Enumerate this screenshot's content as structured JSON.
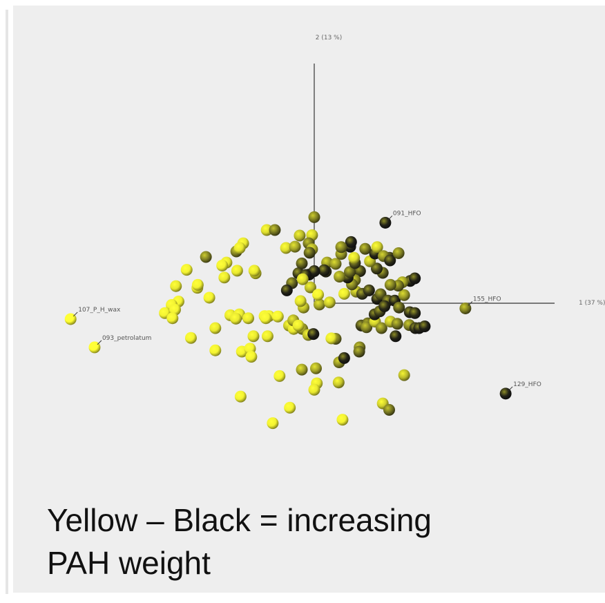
{
  "chart_data": {
    "type": "scatter",
    "axis_labels": {
      "x": "1 (37 %)",
      "y": "2 (13 %)"
    },
    "color_scale": {
      "low": "#ffff33",
      "high": "#151515"
    },
    "labeled_points": [
      {
        "label": "091_HFO",
        "x": 1.66,
        "y": 1.88,
        "w": 0.95
      },
      {
        "label": "155_HFO",
        "x": 3.53,
        "y": -0.12,
        "w": 0.55
      },
      {
        "label": "107_P_H_wax",
        "x": -5.69,
        "y": -0.37,
        "w": 0.0
      },
      {
        "label": "093_petrolatum",
        "x": -5.13,
        "y": -1.03,
        "w": 0.0
      },
      {
        "label": "129_HFO",
        "x": 4.47,
        "y": -2.11,
        "w": 0.95
      }
    ],
    "points": [
      {
        "x": 0.0,
        "y": 2.01,
        "w": 0.55
      },
      {
        "x": -1.11,
        "y": 1.71,
        "w": 0.15
      },
      {
        "x": -0.92,
        "y": 1.71,
        "w": 0.6
      },
      {
        "x": -0.34,
        "y": 1.58,
        "w": 0.3
      },
      {
        "x": -0.05,
        "y": 1.59,
        "w": 0.2
      },
      {
        "x": -1.66,
        "y": 1.4,
        "w": 0.1
      },
      {
        "x": -1.82,
        "y": 1.21,
        "w": 0.55
      },
      {
        "x": -0.66,
        "y": 1.29,
        "w": 0.15
      },
      {
        "x": -0.45,
        "y": 1.32,
        "w": 0.4
      },
      {
        "x": -0.13,
        "y": 1.4,
        "w": 0.6
      },
      {
        "x": -0.05,
        "y": 1.26,
        "w": 0.35
      },
      {
        "x": -0.11,
        "y": 1.18,
        "w": 0.7
      },
      {
        "x": 0.3,
        "y": 0.95,
        "w": 0.45
      },
      {
        "x": -0.29,
        "y": 0.93,
        "w": 0.7
      },
      {
        "x": -1.74,
        "y": 1.29,
        "w": 0.1
      },
      {
        "x": -2.53,
        "y": 1.08,
        "w": 0.55
      },
      {
        "x": -2.05,
        "y": 0.95,
        "w": 0.1
      },
      {
        "x": -1.8,
        "y": 0.76,
        "w": 0.1
      },
      {
        "x": -1.37,
        "y": 0.7,
        "w": 0.2
      },
      {
        "x": -1.4,
        "y": 0.76,
        "w": 0.1
      },
      {
        "x": -2.98,
        "y": 0.78,
        "w": 0.05
      },
      {
        "x": -2.1,
        "y": 0.6,
        "w": 0.1
      },
      {
        "x": -2.15,
        "y": 0.88,
        "w": 0.05
      },
      {
        "x": -3.23,
        "y": 0.4,
        "w": 0.1
      },
      {
        "x": -2.73,
        "y": 0.36,
        "w": 0.1
      },
      {
        "x": -2.72,
        "y": 0.43,
        "w": 0.05
      },
      {
        "x": -3.17,
        "y": 0.04,
        "w": 0.05
      },
      {
        "x": -3.33,
        "y": -0.04,
        "w": 0.05
      },
      {
        "x": -3.49,
        "y": -0.23,
        "w": 0.05
      },
      {
        "x": -3.25,
        "y": -0.15,
        "w": 0.05
      },
      {
        "x": -3.31,
        "y": -0.35,
        "w": 0.05
      },
      {
        "x": -2.45,
        "y": 0.13,
        "w": 0.05
      },
      {
        "x": -1.96,
        "y": -0.28,
        "w": 0.1
      },
      {
        "x": -1.75,
        "y": -0.26,
        "w": 0.1
      },
      {
        "x": -1.54,
        "y": -0.35,
        "w": 0.1
      },
      {
        "x": -1.83,
        "y": -0.36,
        "w": 0.1
      },
      {
        "x": -1.16,
        "y": -0.3,
        "w": 0.05
      },
      {
        "x": -1.06,
        "y": -0.3,
        "w": 0.05
      },
      {
        "x": -1.13,
        "y": -0.35,
        "w": 0.05
      },
      {
        "x": -0.85,
        "y": -0.31,
        "w": 0.05
      },
      {
        "x": -0.59,
        "y": -0.52,
        "w": 0.25
      },
      {
        "x": -0.48,
        "y": -0.6,
        "w": 0.1
      },
      {
        "x": -0.28,
        "y": -0.6,
        "w": 0.45
      },
      {
        "x": -0.49,
        "y": -0.4,
        "w": 0.35
      },
      {
        "x": -0.37,
        "y": -0.52,
        "w": 0.1
      },
      {
        "x": -0.25,
        "y": -0.1,
        "w": 0.3
      },
      {
        "x": -0.32,
        "y": 0.05,
        "w": 0.15
      },
      {
        "x": -0.14,
        "y": -0.74,
        "w": 0.3
      },
      {
        "x": -0.02,
        "y": -0.72,
        "w": 0.95
      },
      {
        "x": -1.42,
        "y": -0.77,
        "w": 0.1
      },
      {
        "x": -1.09,
        "y": -0.77,
        "w": 0.1
      },
      {
        "x": -2.31,
        "y": -0.58,
        "w": 0.1
      },
      {
        "x": -2.88,
        "y": -0.81,
        "w": 0.05
      },
      {
        "x": -2.31,
        "y": -1.1,
        "w": 0.05
      },
      {
        "x": -1.69,
        "y": -1.13,
        "w": 0.05
      },
      {
        "x": -1.5,
        "y": -1.06,
        "w": 0.05
      },
      {
        "x": -1.47,
        "y": -1.25,
        "w": 0.05
      },
      {
        "x": -0.81,
        "y": -1.7,
        "w": 0.05
      },
      {
        "x": -0.29,
        "y": -1.55,
        "w": 0.4
      },
      {
        "x": 0.04,
        "y": -1.52,
        "w": 0.4
      },
      {
        "x": 0.58,
        "y": -1.38,
        "w": 0.5
      },
      {
        "x": 0.7,
        "y": -1.28,
        "w": 0.95
      },
      {
        "x": 0.06,
        "y": -1.87,
        "w": 0.1
      },
      {
        "x": 0.57,
        "y": -1.85,
        "w": 0.25
      },
      {
        "x": 0.0,
        "y": -2.02,
        "w": 0.1
      },
      {
        "x": -1.72,
        "y": -2.18,
        "w": 0.05
      },
      {
        "x": -0.57,
        "y": -2.44,
        "w": 0.05
      },
      {
        "x": -0.97,
        "y": -2.8,
        "w": 0.05
      },
      {
        "x": 0.66,
        "y": -2.72,
        "w": 0.05
      },
      {
        "x": 1.6,
        "y": -2.34,
        "w": 0.2
      },
      {
        "x": 1.75,
        "y": -2.49,
        "w": 0.6
      },
      {
        "x": 2.1,
        "y": -1.68,
        "w": 0.3
      },
      {
        "x": 0.5,
        "y": -0.83,
        "w": 0.55
      },
      {
        "x": 1.06,
        "y": -1.03,
        "w": 0.55
      },
      {
        "x": 1.05,
        "y": -1.13,
        "w": 0.65
      },
      {
        "x": 1.1,
        "y": -0.52,
        "w": 0.8
      },
      {
        "x": 1.25,
        "y": -0.47,
        "w": 0.7
      },
      {
        "x": 1.22,
        "y": -0.56,
        "w": 0.55
      },
      {
        "x": 1.42,
        "y": -0.43,
        "w": 0.2
      },
      {
        "x": 1.57,
        "y": -0.58,
        "w": 0.55
      },
      {
        "x": 1.78,
        "y": -0.43,
        "w": 0.3
      },
      {
        "x": 1.94,
        "y": -0.48,
        "w": 0.6
      },
      {
        "x": 1.9,
        "y": -0.77,
        "w": 0.95
      },
      {
        "x": 2.22,
        "y": -0.51,
        "w": 0.55
      },
      {
        "x": 2.36,
        "y": -0.58,
        "w": 0.9
      },
      {
        "x": 2.45,
        "y": -0.58,
        "w": 0.95
      },
      {
        "x": 2.58,
        "y": -0.54,
        "w": 0.95
      },
      {
        "x": 0.12,
        "y": -0.03,
        "w": 0.4
      },
      {
        "x": 0.36,
        "y": 0.02,
        "w": 0.25
      },
      {
        "x": 0.7,
        "y": 0.22,
        "w": 0.1
      },
      {
        "x": 0.98,
        "y": 0.27,
        "w": 0.35
      },
      {
        "x": 1.12,
        "y": 0.22,
        "w": 0.8
      },
      {
        "x": 1.28,
        "y": 0.3,
        "w": 0.85
      },
      {
        "x": 1.47,
        "y": 0.1,
        "w": 0.95
      },
      {
        "x": 1.55,
        "y": 0.21,
        "w": 0.7
      },
      {
        "x": 1.72,
        "y": 0.06,
        "w": 0.8
      },
      {
        "x": 1.88,
        "y": 0.06,
        "w": 0.95
      },
      {
        "x": 1.98,
        "y": -0.1,
        "w": 0.7
      },
      {
        "x": 1.41,
        "y": -0.26,
        "w": 0.9
      },
      {
        "x": 1.53,
        "y": -0.19,
        "w": 0.8
      },
      {
        "x": 1.64,
        "y": -0.07,
        "w": 0.9
      },
      {
        "x": 2.23,
        "y": -0.21,
        "w": 0.9
      },
      {
        "x": 2.35,
        "y": -0.23,
        "w": 0.9
      },
      {
        "x": 2.1,
        "y": 0.19,
        "w": 0.45
      },
      {
        "x": 2.24,
        "y": 0.52,
        "w": 0.95
      },
      {
        "x": 2.35,
        "y": 0.58,
        "w": 0.95
      },
      {
        "x": 2.06,
        "y": 0.49,
        "w": 0.4
      },
      {
        "x": 1.96,
        "y": 0.41,
        "w": 0.6
      },
      {
        "x": 1.78,
        "y": 0.43,
        "w": 0.55
      },
      {
        "x": 1.6,
        "y": 0.71,
        "w": 0.7
      },
      {
        "x": 1.46,
        "y": 0.81,
        "w": 0.8
      },
      {
        "x": 1.3,
        "y": 0.98,
        "w": 0.3
      },
      {
        "x": 1.07,
        "y": 0.75,
        "w": 0.8
      },
      {
        "x": 0.95,
        "y": 0.54,
        "w": 0.5
      },
      {
        "x": 0.88,
        "y": 0.44,
        "w": 0.55
      },
      {
        "x": 0.78,
        "y": 0.6,
        "w": 0.9
      },
      {
        "x": 0.83,
        "y": 0.73,
        "w": 0.65
      },
      {
        "x": 0.95,
        "y": 0.94,
        "w": 0.75
      },
      {
        "x": 0.93,
        "y": 1.06,
        "w": 0.15
      },
      {
        "x": 0.84,
        "y": 1.32,
        "w": 0.95
      },
      {
        "x": 0.86,
        "y": 1.43,
        "w": 0.95
      },
      {
        "x": 1.19,
        "y": 1.27,
        "w": 0.6
      },
      {
        "x": 1.42,
        "y": 1.16,
        "w": 0.95
      },
      {
        "x": 1.76,
        "y": 1.06,
        "w": 0.85
      },
      {
        "x": 1.47,
        "y": 1.31,
        "w": 0.2
      },
      {
        "x": 1.62,
        "y": 1.1,
        "w": 0.5
      },
      {
        "x": 1.77,
        "y": 1.0,
        "w": 0.9
      },
      {
        "x": 1.97,
        "y": 1.17,
        "w": 0.55
      },
      {
        "x": 0.59,
        "y": 0.62,
        "w": 0.45
      },
      {
        "x": 0.5,
        "y": 0.92,
        "w": 0.45
      },
      {
        "x": 0.27,
        "y": 0.74,
        "w": 0.8
      },
      {
        "x": 0.23,
        "y": 0.77,
        "w": 0.9
      },
      {
        "x": 0.63,
        "y": 1.15,
        "w": 0.5
      },
      {
        "x": 0.63,
        "y": 1.31,
        "w": 0.55
      },
      {
        "x": -0.37,
        "y": 0.7,
        "w": 0.85
      },
      {
        "x": -0.52,
        "y": 0.47,
        "w": 0.7
      },
      {
        "x": -0.64,
        "y": 0.3,
        "w": 0.95
      },
      {
        "x": -0.12,
        "y": 0.67,
        "w": 0.95
      },
      {
        "x": 0.0,
        "y": 0.75,
        "w": 0.95
      },
      {
        "x": -0.2,
        "y": 0.66,
        "w": 0.95
      },
      {
        "x": 0.4,
        "y": -0.82,
        "w": 0.1
      },
      {
        "x": -0.09,
        "y": 0.37,
        "w": 0.3
      },
      {
        "x": 0.09,
        "y": 0.2,
        "w": 0.05
      },
      {
        "x": -0.27,
        "y": 0.56,
        "w": 0.15
      }
    ]
  },
  "caption": {
    "line1": "Yellow – Black = increasing",
    "line2": "PAH weight"
  }
}
